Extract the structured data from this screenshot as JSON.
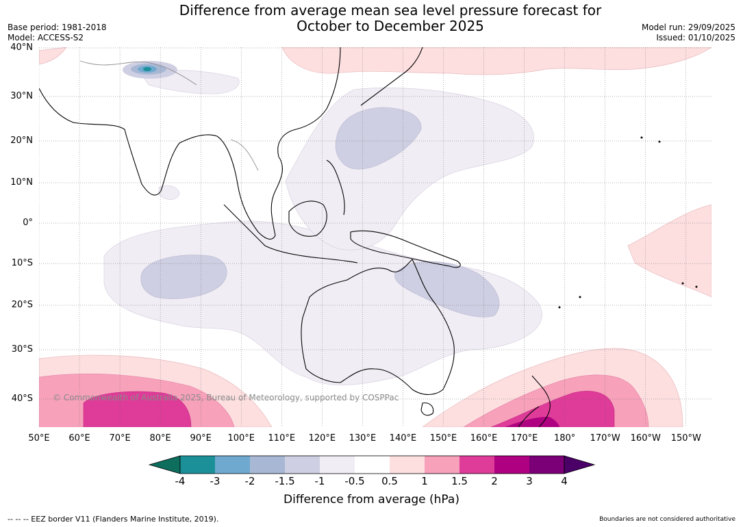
{
  "header": {
    "title_line1": "Difference from average mean sea level pressure forecast for",
    "title_line2": "October to December 2025",
    "base_period": "Base period: 1981-2018",
    "model": "Model: ACCESS-S2",
    "model_run": "Model run: 29/09/2025",
    "issued": "Issued: 01/10/2025"
  },
  "map": {
    "lat_labels": [
      "40°N",
      "30°N",
      "20°N",
      "10°N",
      "0°",
      "10°S",
      "20°S",
      "30°S",
      "40°S"
    ],
    "lon_labels": [
      "50°E",
      "60°E",
      "70°E",
      "80°E",
      "90°E",
      "100°E",
      "110°E",
      "120°E",
      "130°E",
      "140°E",
      "150°E",
      "160°E",
      "170°E",
      "180°",
      "170°W",
      "160°W",
      "150°W"
    ],
    "copyright": "© Commonwealth of Australia 2025, Bureau of Meteorology, supported by COSPPac"
  },
  "colorbar": {
    "title": "Difference from average (hPa)",
    "labels": [
      "-4",
      "-3",
      "-2",
      "-1.5",
      "-1",
      "-0.5",
      "0.5",
      "1",
      "1.5",
      "2",
      "3",
      "4"
    ],
    "colors": [
      "#1b9099",
      "#6fa9d0",
      "#a8b8d4",
      "#cfcfe3",
      "#f1edf4",
      "#ffffff",
      "#fddfe0",
      "#f7a1bb",
      "#df3b98",
      "#ae0080",
      "#7b0078"
    ],
    "below_color": "#0d6e5e",
    "above_color": "#4b0068"
  },
  "footer": {
    "eez_legend": "--  --  -- EEZ border V11 (Flanders Marine Institute, 2019).",
    "boundaries_note": "Boundaries are not considered authoritative"
  }
}
